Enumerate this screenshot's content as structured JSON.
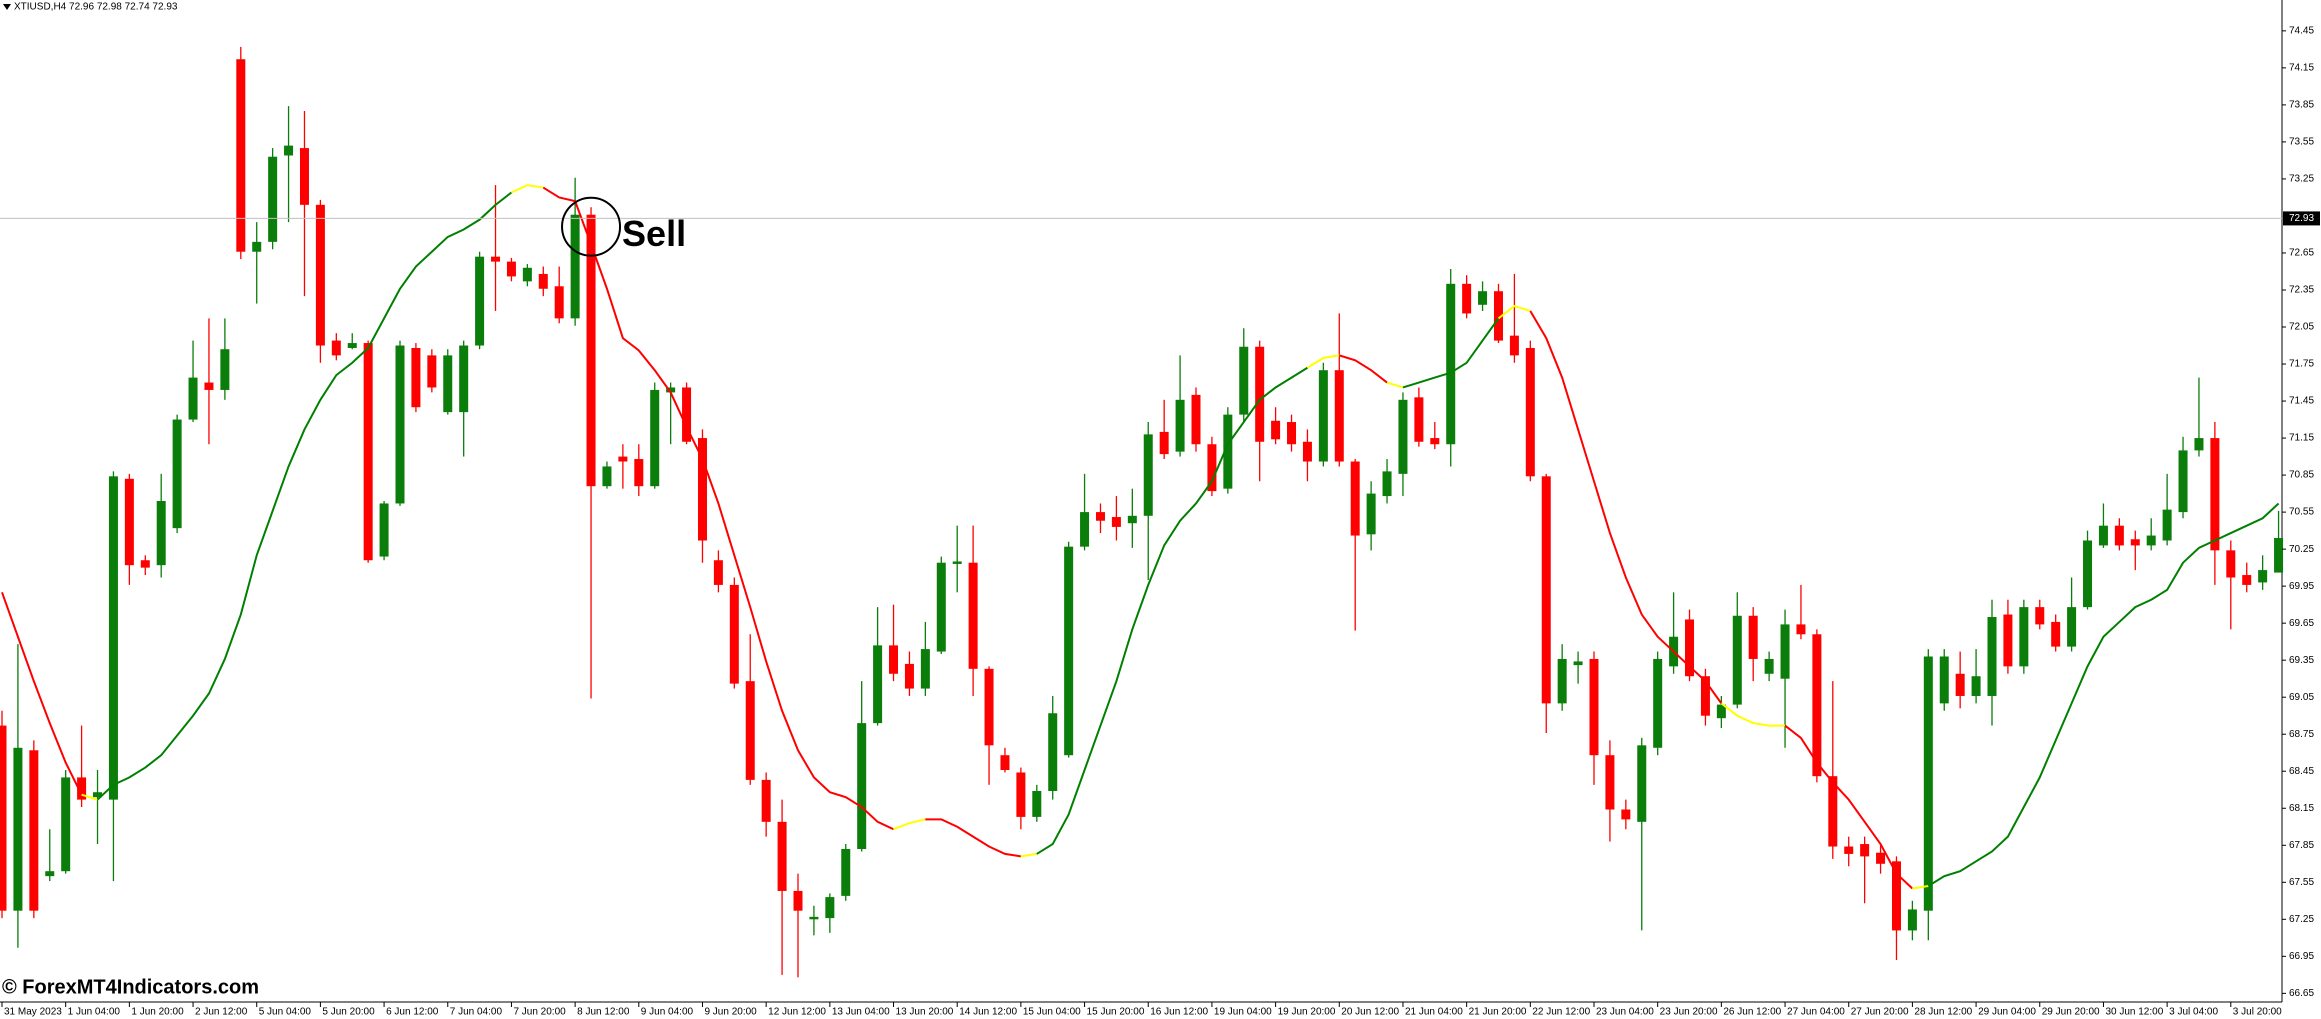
{
  "chart_data": {
    "type": "candlestick",
    "subtitle": "XTIUSD,H4  72.96 72.98 72.74 72.93",
    "annotation": "Sell",
    "watermark": "© ForexMT4Indicators.com",
    "up_color": "#0a7d0a",
    "down_color": "#ff0000",
    "open": [
      68.82,
      67.32,
      68.62,
      67.6,
      67.64,
      68.4,
      68.24,
      68.22,
      70.82,
      70.16,
      70.12,
      70.42,
      71.3,
      71.6,
      71.54,
      74.22,
      72.66,
      72.74,
      73.44,
      73.5,
      73.04,
      71.94,
      71.88,
      71.92,
      70.19,
      70.62,
      71.88,
      71.82,
      71.36,
      71.36,
      71.9,
      72.62,
      72.58,
      72.42,
      72.48,
      72.38,
      72.12,
      72.96,
      70.76,
      71.0,
      70.98,
      70.76,
      71.52,
      71.56,
      71.15,
      70.16,
      69.96,
      69.18,
      68.38,
      68.04,
      67.48,
      67.25,
      67.26,
      67.44,
      67.82,
      68.84,
      69.47,
      69.32,
      69.12,
      69.42,
      70.13,
      70.14,
      69.28,
      68.58,
      68.44,
      68.08,
      68.29,
      68.58,
      70.27,
      70.55,
      70.51,
      70.46,
      70.52,
      71.2,
      71.04,
      71.5,
      71.1,
      70.74,
      71.34,
      71.89,
      71.29,
      71.28,
      71.12,
      70.96,
      71.7,
      70.96,
      70.37,
      70.68,
      70.86,
      71.48,
      71.15,
      71.1,
      72.4,
      72.23,
      72.34,
      71.98,
      71.88,
      70.84,
      69.0,
      69.31,
      69.36,
      68.58,
      68.14,
      68.04,
      68.64,
      69.3,
      69.68,
      69.22,
      68.88,
      68.99,
      69.71,
      69.24,
      69.2,
      69.64,
      69.56,
      68.41,
      67.84,
      67.86,
      67.79,
      67.72,
      67.16,
      67.32,
      69.0,
      69.24,
      69.06,
      69.06,
      69.72,
      69.3,
      69.78,
      69.66,
      69.46,
      69.78,
      70.28,
      70.44,
      70.33,
      70.28,
      70.32,
      70.55,
      71.05,
      71.15,
      70.24,
      70.04,
      69.98,
      70.06
    ],
    "high": [
      68.94,
      69.48,
      68.7,
      67.98,
      68.46,
      68.82,
      68.46,
      70.88,
      70.86,
      70.2,
      70.86,
      71.34,
      71.94,
      72.12,
      72.12,
      74.32,
      72.9,
      73.5,
      73.84,
      73.8,
      73.08,
      72.0,
      72.0,
      71.94,
      70.64,
      71.94,
      71.92,
      71.87,
      71.87,
      71.94,
      72.66,
      73.2,
      72.61,
      72.56,
      72.54,
      72.54,
      73.26,
      73.02,
      70.96,
      71.1,
      71.1,
      71.6,
      71.6,
      71.6,
      71.22,
      70.24,
      70.02,
      69.56,
      68.44,
      68.22,
      67.62,
      67.36,
      67.46,
      67.86,
      69.18,
      69.78,
      69.8,
      69.42,
      69.66,
      70.19,
      70.44,
      70.44,
      69.3,
      68.64,
      68.48,
      68.34,
      69.06,
      70.31,
      70.86,
      70.62,
      70.68,
      70.74,
      71.28,
      71.46,
      71.82,
      71.56,
      71.16,
      71.4,
      72.04,
      71.94,
      71.4,
      71.34,
      71.22,
      71.76,
      72.16,
      70.98,
      70.8,
      70.98,
      71.52,
      71.56,
      71.28,
      72.52,
      72.47,
      72.42,
      72.4,
      72.48,
      71.94,
      70.86,
      69.48,
      69.42,
      69.42,
      68.7,
      68.22,
      68.72,
      69.42,
      69.9,
      69.76,
      69.28,
      69.06,
      69.9,
      69.78,
      69.42,
      69.76,
      69.96,
      69.6,
      69.18,
      67.92,
      67.92,
      67.86,
      67.76,
      67.4,
      69.44,
      69.44,
      69.42,
      69.44,
      69.84,
      69.84,
      69.84,
      69.84,
      69.72,
      70.02,
      70.4,
      70.62,
      70.5,
      70.4,
      70.5,
      70.86,
      71.16,
      71.64,
      71.28,
      70.32,
      70.14,
      70.2,
      70.56
    ],
    "low": [
      67.26,
      67.02,
      67.26,
      67.56,
      67.62,
      68.16,
      67.86,
      67.56,
      69.96,
      70.04,
      70.02,
      70.38,
      71.28,
      71.1,
      71.46,
      72.6,
      72.24,
      72.68,
      72.9,
      72.3,
      71.76,
      71.78,
      71.87,
      70.14,
      70.16,
      70.6,
      71.36,
      71.52,
      71.34,
      71.0,
      71.87,
      72.18,
      72.42,
      72.38,
      72.3,
      72.08,
      72.06,
      69.04,
      70.74,
      70.74,
      70.68,
      70.74,
      71.1,
      71.1,
      70.14,
      69.9,
      69.12,
      68.34,
      67.92,
      66.8,
      66.78,
      67.12,
      67.14,
      67.4,
      67.8,
      68.82,
      69.18,
      69.06,
      69.06,
      69.4,
      69.9,
      69.06,
      68.34,
      68.44,
      67.98,
      68.04,
      68.22,
      68.56,
      70.24,
      70.38,
      70.32,
      70.26,
      70.0,
      70.98,
      71.0,
      71.04,
      70.68,
      70.7,
      71.28,
      70.8,
      71.1,
      71.04,
      70.8,
      70.92,
      70.92,
      69.59,
      70.24,
      70.62,
      70.68,
      71.08,
      71.06,
      70.92,
      72.12,
      72.18,
      71.92,
      71.76,
      70.8,
      68.76,
      68.94,
      69.16,
      68.34,
      67.88,
      67.98,
      67.16,
      68.58,
      69.24,
      69.18,
      68.82,
      68.8,
      68.96,
      69.18,
      69.18,
      68.64,
      69.52,
      68.36,
      67.74,
      67.68,
      67.38,
      67.62,
      66.92,
      67.08,
      67.08,
      68.94,
      68.96,
      69.0,
      68.82,
      69.24,
      69.24,
      69.6,
      69.42,
      69.42,
      69.76,
      70.26,
      70.24,
      70.08,
      70.24,
      70.28,
      70.5,
      71.0,
      69.96,
      69.6,
      69.9,
      69.92,
      70.06
    ],
    "close": [
      67.32,
      68.64,
      67.32,
      67.64,
      68.4,
      68.22,
      68.28,
      70.84,
      70.12,
      70.1,
      70.64,
      71.3,
      71.64,
      71.54,
      71.87,
      72.66,
      72.74,
      73.43,
      73.52,
      73.04,
      71.9,
      71.82,
      71.92,
      70.16,
      70.62,
      71.9,
      71.4,
      71.56,
      71.82,
      71.9,
      72.62,
      72.58,
      72.46,
      72.53,
      72.36,
      72.12,
      72.96,
      70.76,
      70.92,
      70.96,
      70.76,
      71.54,
      71.56,
      71.12,
      70.32,
      69.96,
      69.16,
      68.38,
      68.04,
      67.48,
      67.32,
      67.27,
      67.43,
      67.82,
      68.84,
      69.47,
      69.24,
      69.12,
      69.44,
      70.14,
      70.15,
      69.28,
      68.66,
      68.46,
      68.08,
      68.29,
      68.92,
      70.27,
      70.55,
      70.48,
      70.43,
      70.52,
      71.18,
      71.02,
      71.46,
      71.1,
      70.72,
      71.34,
      71.89,
      71.12,
      71.14,
      71.1,
      70.96,
      71.7,
      70.96,
      70.36,
      70.7,
      70.88,
      71.46,
      71.12,
      71.1,
      72.4,
      72.16,
      72.34,
      71.94,
      71.82,
      70.84,
      69.0,
      69.36,
      69.34,
      68.58,
      68.14,
      68.06,
      68.66,
      69.36,
      69.54,
      69.22,
      68.9,
      68.99,
      69.71,
      69.36,
      69.36,
      69.64,
      69.56,
      68.41,
      67.84,
      67.78,
      67.76,
      67.7,
      67.16,
      67.33,
      69.38,
      69.38,
      69.06,
      69.22,
      69.7,
      69.3,
      69.78,
      69.64,
      69.46,
      69.78,
      70.32,
      70.44,
      70.28,
      70.28,
      70.36,
      70.57,
      71.05,
      71.15,
      70.24,
      70.02,
      69.96,
      70.08,
      70.34
    ],
    "indicator": {
      "values": [
        69.9,
        69.54,
        69.18,
        68.84,
        68.52,
        68.26,
        68.22,
        68.34,
        68.4,
        68.48,
        68.58,
        68.74,
        68.9,
        69.08,
        69.36,
        69.72,
        70.2,
        70.56,
        70.92,
        71.22,
        71.46,
        71.66,
        71.76,
        71.88,
        72.12,
        72.36,
        72.54,
        72.66,
        72.78,
        72.84,
        72.92,
        73.04,
        73.14,
        73.2,
        73.18,
        73.1,
        73.07,
        72.72,
        72.36,
        71.96,
        71.86,
        71.7,
        71.52,
        71.24,
        70.98,
        70.62,
        70.2,
        69.78,
        69.34,
        68.94,
        68.62,
        68.4,
        68.28,
        68.24,
        68.16,
        68.04,
        67.98,
        68.03,
        68.06,
        68.06,
        68.0,
        67.92,
        67.84,
        67.78,
        67.76,
        67.78,
        67.86,
        68.1,
        68.46,
        68.82,
        69.18,
        69.6,
        69.96,
        70.28,
        70.48,
        70.62,
        70.8,
        71.1,
        71.28,
        71.46,
        71.56,
        71.64,
        71.72,
        71.8,
        71.82,
        71.78,
        71.7,
        71.6,
        71.56,
        71.6,
        71.64,
        71.68,
        71.76,
        71.94,
        72.12,
        72.22,
        72.18,
        71.96,
        71.64,
        71.22,
        70.8,
        70.38,
        70.02,
        69.72,
        69.54,
        69.42,
        69.3,
        69.18,
        69.0,
        68.9,
        68.84,
        68.82,
        68.82,
        68.72,
        68.52,
        68.36,
        68.22,
        68.04,
        67.86,
        67.62,
        67.5,
        67.52,
        67.6,
        67.64,
        67.72,
        67.8,
        67.92,
        68.16,
        68.4,
        68.7,
        69.0,
        69.3,
        69.54,
        69.66,
        69.78,
        69.84,
        69.92,
        70.14,
        70.26,
        70.32,
        70.38,
        70.44,
        70.5,
        70.62
      ],
      "segments": [
        {
          "color": "#ff0000",
          "points": [
            0,
            5
          ]
        },
        {
          "color": "#ffff00",
          "points": [
            5,
            6
          ]
        },
        {
          "color": "#008000",
          "points": [
            6,
            32
          ]
        },
        {
          "color": "#ffff00",
          "points": [
            32,
            34
          ]
        },
        {
          "color": "#ff0000",
          "points": [
            34,
            56
          ]
        },
        {
          "color": "#ffff00",
          "points": [
            56,
            58
          ]
        },
        {
          "color": "#ff0000",
          "points": [
            58,
            64
          ]
        },
        {
          "color": "#ffff00",
          "points": [
            64,
            65
          ]
        },
        {
          "color": "#008000",
          "points": [
            65,
            82
          ]
        },
        {
          "color": "#ffff00",
          "points": [
            82,
            84
          ]
        },
        {
          "color": "#ff0000",
          "points": [
            84,
            87
          ]
        },
        {
          "color": "#ffff00",
          "points": [
            87,
            88
          ]
        },
        {
          "color": "#008000",
          "points": [
            88,
            94
          ]
        },
        {
          "color": "#ffff00",
          "points": [
            94,
            96
          ]
        },
        {
          "color": "#ff0000",
          "points": [
            96,
            108
          ]
        },
        {
          "color": "#ffff00",
          "points": [
            108,
            112
          ]
        },
        {
          "color": "#ff0000",
          "points": [
            112,
            120
          ]
        },
        {
          "color": "#ffff00",
          "points": [
            120,
            121
          ]
        },
        {
          "color": "#008000",
          "points": [
            121,
            143
          ]
        }
      ]
    },
    "sell_index": 37,
    "last_price": 72.93,
    "ylim": [
      66.58,
      74.7
    ],
    "yticks": [
      74.45,
      74.15,
      73.85,
      73.55,
      73.25,
      72.65,
      72.35,
      72.05,
      71.75,
      71.45,
      71.15,
      70.85,
      70.55,
      70.25,
      69.95,
      69.65,
      69.35,
      69.05,
      68.75,
      68.45,
      68.15,
      67.85,
      67.55,
      67.25,
      66.95,
      66.65
    ],
    "xticks": [
      {
        "value": 0,
        "label": "31 May 2023"
      },
      {
        "value": 4,
        "label": "1 Jun 04:00"
      },
      {
        "value": 8,
        "label": "1 Jun 20:00"
      },
      {
        "value": 12,
        "label": "2 Jun 12:00"
      },
      {
        "value": 16,
        "label": "5 Jun 04:00"
      },
      {
        "value": 20,
        "label": "5 Jun 20:00"
      },
      {
        "value": 24,
        "label": "6 Jun 12:00"
      },
      {
        "value": 28,
        "label": "7 Jun 04:00"
      },
      {
        "value": 32,
        "label": "7 Jun 20:00"
      },
      {
        "value": 36,
        "label": "8 Jun 12:00"
      },
      {
        "value": 40,
        "label": "9 Jun 04:00"
      },
      {
        "value": 44,
        "label": "9 Jun 20:00"
      },
      {
        "value": 48,
        "label": "12 Jun 12:00"
      },
      {
        "value": 52,
        "label": "13 Jun 04:00"
      },
      {
        "value": 56,
        "label": "13 Jun 20:00"
      },
      {
        "value": 60,
        "label": "14 Jun 12:00"
      },
      {
        "value": 64,
        "label": "15 Jun 04:00"
      },
      {
        "value": 68,
        "label": "15 Jun 20:00"
      },
      {
        "value": 72,
        "label": "16 Jun 12:00"
      },
      {
        "value": 76,
        "label": "19 Jun 04:00"
      },
      {
        "value": 80,
        "label": "19 Jun 20:00"
      },
      {
        "value": 84,
        "label": "20 Jun 12:00"
      },
      {
        "value": 88,
        "label": "21 Jun 04:00"
      },
      {
        "value": 92,
        "label": "21 Jun 20:00"
      },
      {
        "value": 96,
        "label": "22 Jun 12:00"
      },
      {
        "value": 100,
        "label": "23 Jun 04:00"
      },
      {
        "value": 104,
        "label": "23 Jun 20:00"
      },
      {
        "value": 108,
        "label": "26 Jun 12:00"
      },
      {
        "value": 112,
        "label": "27 Jun 04:00"
      },
      {
        "value": 116,
        "label": "27 Jun 20:00"
      },
      {
        "value": 120,
        "label": "28 Jun 12:00"
      },
      {
        "value": 124,
        "label": "29 Jun 04:00"
      },
      {
        "value": 128,
        "label": "29 Jun 20:00"
      },
      {
        "value": 132,
        "label": "30 Jun 12:00"
      },
      {
        "value": 136,
        "label": "3 Jul 04:00"
      },
      {
        "value": 140,
        "label": "3 Jul 20:00"
      }
    ]
  }
}
